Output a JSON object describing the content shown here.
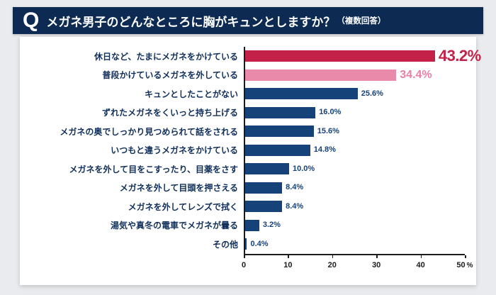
{
  "header": {
    "q_mark": "Q",
    "title": "メガネ男子のどんなところに胸がキュンとしますか？",
    "subtitle": "（複数回答）"
  },
  "chart_data": {
    "type": "bar",
    "orientation": "horizontal",
    "title": "メガネ男子のどんなところに胸がキュンとしますか？（複数回答）",
    "categories": [
      "休日など、たまにメガネをかけている",
      "普段かけているメガネを外している",
      "キュンとしたことがない",
      "ずれたメガネをくいっと持ち上げる",
      "メガネの奥でしっかり見つめられて話をされる",
      "いつもと違うメガネをかけている",
      "メガネを外して目をこすったり、目薬をさす",
      "メガネを外して目頭を押さえる",
      "メガネを外してレンズで拭く",
      "湯気や真冬の電車でメガネが曇る",
      "その他"
    ],
    "values": [
      43.2,
      34.4,
      25.6,
      16.0,
      15.6,
      14.8,
      10.0,
      8.4,
      8.4,
      3.2,
      0.4
    ],
    "value_labels": [
      "43.2%",
      "34.4%",
      "25.6%",
      "16.0%",
      "15.6%",
      "14.8%",
      "10.0%",
      "8.4%",
      "8.4%",
      "3.2%",
      "0.4%"
    ],
    "xlim": [
      0,
      50
    ],
    "x_ticks": [
      "0",
      "10",
      "20",
      "30",
      "40",
      "50"
    ],
    "x_axis_suffix": "%",
    "grid": false,
    "legend": false,
    "bar_colors": [
      "#c42149",
      "#e98aab",
      "#16427a",
      "#16427a",
      "#16427a",
      "#16427a",
      "#16427a",
      "#16427a",
      "#16427a",
      "#16427a",
      "#16427a"
    ],
    "value_label_colors": [
      "#c42149",
      "#e87fa6",
      "#16427a",
      "#16427a",
      "#16427a",
      "#16427a",
      "#16427a",
      "#16427a",
      "#16427a",
      "#16427a",
      "#16427a"
    ]
  },
  "colors": {
    "header_bg": "#0d2b52",
    "page_bg": "#e9ebee",
    "card_bg": "#ffffff",
    "axis": "#1b1b1b",
    "category_text": "#102f5a"
  }
}
